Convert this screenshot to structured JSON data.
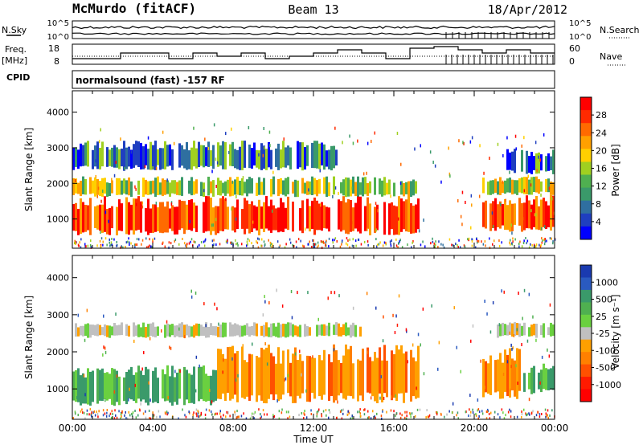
{
  "header": {
    "station": "McMurdo (fitACF)",
    "beam": "Beam 13",
    "date": "18/Apr/2012"
  },
  "summary_panels": {
    "nsky": {
      "label": "N.Sky",
      "ticks": [
        "10^5",
        "10^0"
      ]
    },
    "nsearch": {
      "label": "N.Search",
      "ticks": [
        "10^5",
        "10^0"
      ]
    },
    "freq": {
      "label_line1": "Freq.",
      "label_line2": "[MHz]",
      "ticks": [
        "18",
        "8"
      ]
    },
    "nave": {
      "label": "Nave",
      "ticks": [
        "60",
        "0"
      ]
    },
    "cpid_label": "CPID",
    "cpid_text": "normalsound (fast) -157 RF"
  },
  "chart_data": [
    {
      "type": "heatmap",
      "name": "power",
      "ylabel": "Slant Range [km]",
      "y_ticks": [
        "4000",
        "3000",
        "2000",
        "1000"
      ],
      "y_tick_values": [
        4000,
        3000,
        2000,
        1000
      ],
      "ylim": [
        180,
        4600
      ],
      "x_ticks": [
        "00:00",
        "04:00",
        "08:00",
        "12:00",
        "16:00",
        "20:00",
        "00:00"
      ],
      "colorbar": {
        "label": "Power [dB]",
        "ticks": [
          "28",
          "24",
          "20",
          "16",
          "12",
          "8",
          "4"
        ],
        "colors": [
          "#ff0000",
          "#ff2a00",
          "#ff6a00",
          "#ffa000",
          "#ffd000",
          "#a0d020",
          "#4fb050",
          "#3a9a6a",
          "#2f6fa0",
          "#1f3fc0",
          "#0000ff"
        ]
      },
      "echo_bands": [
        {
          "from": 0.0,
          "to": 0.72,
          "range": [
            600,
            1650
          ],
          "level": "strong"
        },
        {
          "from": 0.0,
          "to": 0.72,
          "range": [
            1650,
            2200
          ],
          "level": "medium"
        },
        {
          "from": 0.0,
          "to": 0.55,
          "range": [
            2400,
            3200
          ],
          "level": "weak"
        },
        {
          "from": 0.85,
          "to": 1.0,
          "range": [
            700,
            1700
          ],
          "level": "strong"
        },
        {
          "from": 0.85,
          "to": 1.0,
          "range": [
            1700,
            2200
          ],
          "level": "medium"
        },
        {
          "from": 0.9,
          "to": 1.0,
          "range": [
            2300,
            3000
          ],
          "level": "weak"
        }
      ]
    },
    {
      "type": "heatmap",
      "name": "velocity",
      "ylabel": "Slant Range [km]",
      "y_ticks": [
        "4000",
        "3000",
        "2000",
        "1000"
      ],
      "y_tick_values": [
        4000,
        3000,
        2000,
        1000
      ],
      "ylim": [
        180,
        4600
      ],
      "x_ticks": [
        "00:00",
        "04:00",
        "08:00",
        "12:00",
        "16:00",
        "20:00",
        "00:00"
      ],
      "xlabel": "Time UT",
      "colorbar": {
        "label": "Velocity [m s⁻¹]",
        "ticks": [
          "1000",
          "500",
          "25",
          "-25",
          "-100",
          "-500",
          "-1000"
        ],
        "colors": [
          "#1a3ab0",
          "#2a5ac0",
          "#3a9a6a",
          "#4fb050",
          "#6ad040",
          "#c0c0c0",
          "#ffa000",
          "#ff8000",
          "#ff5000",
          "#ff1a00",
          "#ff0000"
        ]
      },
      "echo_bands": [
        {
          "from": 0.0,
          "to": 0.3,
          "range": [
            600,
            1650
          ],
          "level": "green"
        },
        {
          "from": 0.3,
          "to": 0.72,
          "range": [
            700,
            2200
          ],
          "level": "orange"
        },
        {
          "from": 0.0,
          "to": 0.6,
          "range": [
            2400,
            2800
          ],
          "level": "gray"
        },
        {
          "from": 0.85,
          "to": 0.93,
          "range": [
            800,
            2100
          ],
          "level": "orange"
        },
        {
          "from": 0.93,
          "to": 1.0,
          "range": [
            900,
            1700
          ],
          "level": "green"
        },
        {
          "from": 0.88,
          "to": 1.0,
          "range": [
            2400,
            2800
          ],
          "level": "gray"
        }
      ]
    }
  ]
}
